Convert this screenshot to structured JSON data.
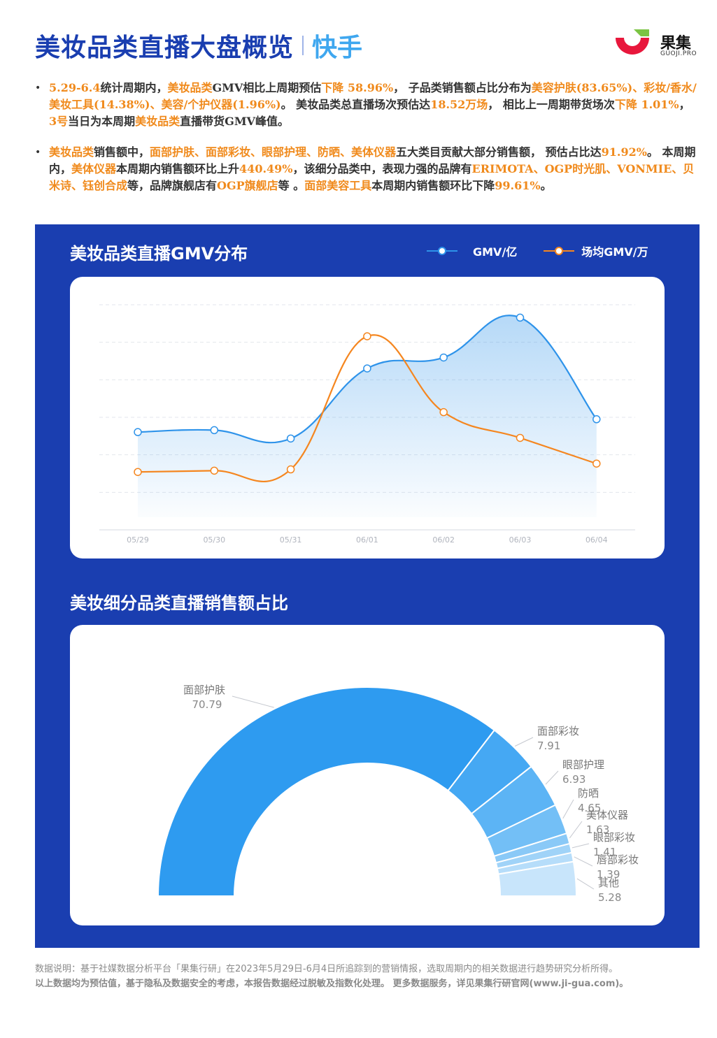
{
  "header": {
    "title": "美妆品类直播大盘概览",
    "subtitle": "快手",
    "logo_name": "果集",
    "logo_sub": "GUOJI.PRO"
  },
  "paragraph1": {
    "s1": "5.29-6.4",
    "s2": "统计周期内，",
    "s3": "美妆品类",
    "s4": "GMV相比上周期预估",
    "s5": "下降 58.96%",
    "s6": "， 子品类销售额占比分布为",
    "s7": "美容护肤(83.65%)、彩妆/香水/美妆工具(14.38%)、美容/个护仪器(1.96%)",
    "s8": "。 美妆品类总直播场次预估达",
    "s9": "18.52万场",
    "s10": "， 相比上一周期带货场次",
    "s11": "下降 1.01%",
    "s12": "， ",
    "s13": "3号",
    "s14": "当日为本周期",
    "s15": "美妆品类",
    "s16": "直播带货GMV峰值。"
  },
  "paragraph2": {
    "s1": "美妆品类",
    "s2": "销售额中，",
    "s3": "面部护肤、面部彩妆、眼部护理、防晒、美体仪器",
    "s4": "五大类目贡献大部分销售额， 预估占比达",
    "s5": "91.92%",
    "s6": "。 本周期内，",
    "s7": "美体仪器",
    "s8": "本周期内销售额环比上升",
    "s9": "440.49%",
    "s10": "，该细分品类中，表现力强的品牌有",
    "s11": "ERIMOTA、OGP时光肌、VONMIE、贝米诗、钰创合成",
    "s12": "等，品牌旗舰店有",
    "s13": "OGP旗舰店",
    "s14": "等 。",
    "s15": "面部美容工具",
    "s16": "本周期内销售额环比下降",
    "s17": "99.61%",
    "s18": "。"
  },
  "colors": {
    "panel": "#1a3eb0",
    "gmv": "#2e93ea",
    "avg": "#f5861f",
    "highlight": "#f08a1c"
  },
  "chart_data": [
    {
      "type": "line",
      "title": "美妆品类直播GMV分布",
      "legend_position": "top-right",
      "grid": true,
      "y_axis_labels_shown": false,
      "x": [
        "05/29",
        "05/30",
        "05/31",
        "06/01",
        "06/02",
        "06/03",
        "06/04"
      ],
      "series": [
        {
          "name": "GMV/亿",
          "color": "#2e93ea",
          "values": [
            2.04,
            2.1,
            1.84,
            4.02,
            4.36,
            5.6,
            2.44
          ],
          "area": true
        },
        {
          "name": "场均GMV/万",
          "color": "#f5861f",
          "values": [
            0.8,
            0.84,
            0.88,
            5.02,
            2.66,
            1.86,
            1.06
          ]
        }
      ],
      "ylim": [
        -1,
        6
      ]
    },
    {
      "type": "pie",
      "variant": "half-donut",
      "title": "美妆细分品类直播销售额占比",
      "categories": [
        "面部护肤",
        "面部彩妆",
        "眼部护理",
        "防晒",
        "美体仪器",
        "眼部彩妆",
        "唇部彩妆",
        "其他"
      ],
      "values": [
        70.79,
        7.91,
        6.93,
        4.65,
        1.63,
        1.41,
        1.39,
        5.28
      ],
      "colors": [
        "#2e9bf0",
        "#45a8f3",
        "#5cb4f5",
        "#73bff6",
        "#8ac9f7",
        "#a0d3f8",
        "#b6ddfa",
        "#c8e5fb"
      ]
    }
  ],
  "footer": {
    "line1": "数据说明：基于社媒数据分析平台「果集行研」在2023年5月29日-6月4日所追踪到的营销情报，选取周期内的相关数据进行趋势研究分析所得。",
    "line2": "以上数据均为预估值，基于隐私及数据安全的考虑，本报告数据经过脱敏及指数化处理。 更多数据服务，详见果集行研官网(www.ji-gua.com)。"
  }
}
